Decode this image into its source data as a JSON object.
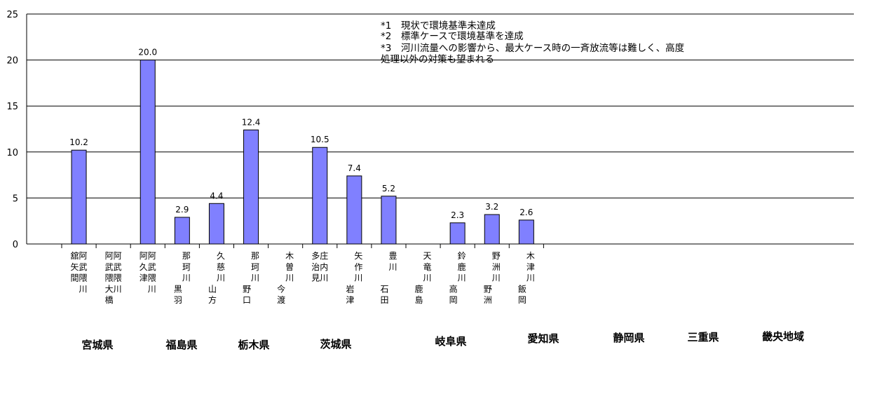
{
  "chart_data": {
    "type": "bar",
    "ylim": [
      0,
      25
    ],
    "yticks": [
      "0",
      "5",
      "10",
      "15",
      "20",
      "25"
    ],
    "grid": true,
    "bar_color": "#8080ff",
    "notes": [
      "*1　現状で環境基準未達成",
      "*2　標準ケースで環境基準を達成",
      "*3　河川流量への影響から、最大ケース時の一斉放流等は難しく、高度",
      "処理以外の対策も望まれる"
    ],
    "categories": [
      {
        "col1": "阿武隈川",
        "col2": "舘矢間"
      },
      {
        "col1": "阿武隈川",
        "col2": "阿武隈大橋"
      },
      {
        "col1": "阿武隈川",
        "col2": "阿久津"
      },
      {
        "col1": "那珂川",
        "col2": "黒羽"
      },
      {
        "col1": "久慈川",
        "col2": "山方"
      },
      {
        "col1": "那珂川",
        "col2": "野口"
      },
      {
        "col1": "木曽川",
        "col2": "今渡"
      },
      {
        "col1": "庄内川",
        "col2": "多治見"
      },
      {
        "col1": "矢作川",
        "col2": "岩津"
      },
      {
        "col1": "豊川",
        "col2": "石田"
      },
      {
        "col1": "天竜川",
        "col2": "鹿島"
      },
      {
        "col1": "鈴鹿川",
        "col2": "高岡"
      },
      {
        "col1": "野洲川",
        "col2": "野洲"
      },
      {
        "col1": "木津川",
        "col2": "飯岡"
      }
    ],
    "values": [
      10.2,
      null,
      20.0,
      2.9,
      4.4,
      12.4,
      null,
      10.5,
      7.4,
      5.2,
      null,
      2.3,
      3.2,
      2.6
    ],
    "value_labels": [
      "10.2",
      "",
      "20.0",
      "2.9",
      "4.4",
      "12.4",
      "",
      "10.5",
      "7.4",
      "5.2",
      "",
      "2.3",
      "3.2",
      "2.6"
    ],
    "groups": [
      {
        "label": "宮城県"
      },
      {
        "label": "福島県"
      },
      {
        "label": "栃木県"
      },
      {
        "label": "茨城県"
      },
      {
        "label": "岐阜県"
      },
      {
        "label": "愛知県"
      },
      {
        "label": "静岡県"
      },
      {
        "label": "三重県"
      },
      {
        "label": "畿央地域"
      }
    ]
  }
}
